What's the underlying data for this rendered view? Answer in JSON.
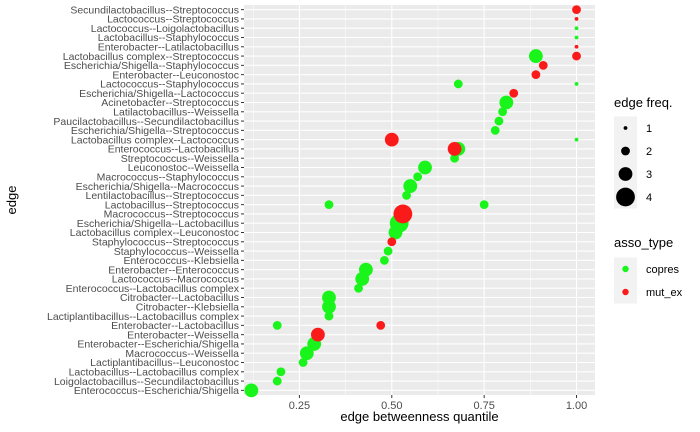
{
  "chart_data": {
    "type": "scatter",
    "title": "",
    "xlabel": "edge betweenness quantile",
    "ylabel": "edge",
    "xlim": [
      0.1,
      1.05
    ],
    "x_ticks": [
      0.25,
      0.5,
      0.75,
      1.0
    ],
    "x_tick_labels": [
      "0.25",
      "0.50",
      "0.75",
      "1.00"
    ],
    "grid": true,
    "legend_placement": "right",
    "colors": {
      "copres": "#19f51b",
      "mut_ex": "#fb1a1a",
      "panel": "#ebebeb",
      "grid": "#ffffff"
    },
    "categories": [
      "Secundilactobacillus--Streptococcus",
      "Lactococcus--Streptococcus",
      "Lactococcus--Loigolactobacillus",
      "Lactobacillus--Staphylococcus",
      "Enterobacter--Latilactobacillus",
      "Lactobacillus complex--Streptococcus",
      "Escherichia/Shigella--Staphylococcus",
      "Enterobacter--Leuconostoc",
      "Lactococcus--Staphylococcus",
      "Escherichia/Shigella--Lactococcus",
      "Acinetobacter--Streptococcus",
      "Latilactobacillus--Weissella",
      "Paucilactobacillus--Secundilactobacillus",
      "Escherichia/Shigella--Streptococcus",
      "Lactobacillus complex--Lactococcus",
      "Enterococcus--Lactobacillus",
      "Streptococcus--Weissella",
      "Leuconostoc--Weissella",
      "Macrococcus--Staphylococcus",
      "Escherichia/Shigella--Macrococcus",
      "Lentilactobacillus--Streptococcus",
      "Lactobacillus--Streptococcus",
      "Macrococcus--Streptococcus",
      "Escherichia/Shigella--Lactobacillus",
      "Lactobacillus complex--Leuconostoc",
      "Staphylococcus--Streptococcus",
      "Staphylococcus--Weissella",
      "Enterococcus--Klebsiella",
      "Enterobacter--Enterococcus",
      "Lactococcus--Macrococcus",
      "Enterococcus--Lactobacillus complex",
      "Citrobacter--Lactobacillus",
      "Citrobacter--Klebsiella",
      "Lactiplantibacillus--Lactobacillus complex",
      "Enterobacter--Lactobacillus",
      "Enterobacter--Weissella",
      "Enterobacter--Escherichia/Shigella",
      "Macrococcus--Weissella",
      "Lactiplantibacillus--Leuconostoc",
      "Lactobacillus--Lactobacillus complex",
      "Loigolactobacillus--Secundilactobacillus",
      "Enterococcus--Escherichia/Shigella"
    ],
    "series": [
      {
        "name": "copres",
        "color": "#19f51b",
        "points": [
          {
            "edge": "Lactococcus--Loigolactobacillus",
            "x": 1.0,
            "freq": 1
          },
          {
            "edge": "Lactobacillus--Staphylococcus",
            "x": 1.0,
            "freq": 1
          },
          {
            "edge": "Lactobacillus complex--Streptococcus",
            "x": 0.89,
            "freq": 3
          },
          {
            "edge": "Lactococcus--Staphylococcus",
            "x": 0.68,
            "freq": 2
          },
          {
            "edge": "Lactococcus--Staphylococcus",
            "x": 1.0,
            "freq": 1
          },
          {
            "edge": "Acinetobacter--Streptococcus",
            "x": 0.81,
            "freq": 3
          },
          {
            "edge": "Latilactobacillus--Weissella",
            "x": 0.8,
            "freq": 2
          },
          {
            "edge": "Paucilactobacillus--Secundilactobacillus",
            "x": 0.79,
            "freq": 2
          },
          {
            "edge": "Escherichia/Shigella--Streptococcus",
            "x": 0.78,
            "freq": 2
          },
          {
            "edge": "Lactobacillus complex--Lactococcus",
            "x": 1.0,
            "freq": 1
          },
          {
            "edge": "Enterococcus--Lactobacillus",
            "x": 0.68,
            "freq": 3
          },
          {
            "edge": "Streptococcus--Weissella",
            "x": 0.67,
            "freq": 2
          },
          {
            "edge": "Leuconostoc--Weissella",
            "x": 0.59,
            "freq": 3
          },
          {
            "edge": "Macrococcus--Staphylococcus",
            "x": 0.57,
            "freq": 2
          },
          {
            "edge": "Escherichia/Shigella--Macrococcus",
            "x": 0.55,
            "freq": 3
          },
          {
            "edge": "Lentilactobacillus--Streptococcus",
            "x": 0.54,
            "freq": 2
          },
          {
            "edge": "Lactobacillus--Streptococcus",
            "x": 0.33,
            "freq": 2
          },
          {
            "edge": "Lactobacillus--Streptococcus",
            "x": 0.75,
            "freq": 2
          },
          {
            "edge": "Escherichia/Shigella--Lactobacillus",
            "x": 0.52,
            "freq": 4
          },
          {
            "edge": "Lactobacillus complex--Leuconostoc",
            "x": 0.51,
            "freq": 3
          },
          {
            "edge": "Staphylococcus--Weissella",
            "x": 0.49,
            "freq": 2
          },
          {
            "edge": "Enterococcus--Klebsiella",
            "x": 0.48,
            "freq": 2
          },
          {
            "edge": "Enterobacter--Enterococcus",
            "x": 0.43,
            "freq": 3
          },
          {
            "edge": "Lactococcus--Macrococcus",
            "x": 0.42,
            "freq": 3
          },
          {
            "edge": "Enterococcus--Lactobacillus complex",
            "x": 0.41,
            "freq": 2
          },
          {
            "edge": "Citrobacter--Lactobacillus",
            "x": 0.33,
            "freq": 3
          },
          {
            "edge": "Citrobacter--Klebsiella",
            "x": 0.33,
            "freq": 3
          },
          {
            "edge": "Lactiplantibacillus--Lactobacillus complex",
            "x": 0.33,
            "freq": 2
          },
          {
            "edge": "Enterobacter--Lactobacillus",
            "x": 0.19,
            "freq": 2
          },
          {
            "edge": "Enterobacter--Escherichia/Shigella",
            "x": 0.29,
            "freq": 3
          },
          {
            "edge": "Macrococcus--Weissella",
            "x": 0.27,
            "freq": 3
          },
          {
            "edge": "Lactiplantibacillus--Leuconostoc",
            "x": 0.26,
            "freq": 2
          },
          {
            "edge": "Lactobacillus--Lactobacillus complex",
            "x": 0.2,
            "freq": 2
          },
          {
            "edge": "Loigolactobacillus--Secundilactobacillus",
            "x": 0.19,
            "freq": 2
          },
          {
            "edge": "Enterococcus--Escherichia/Shigella",
            "x": 0.12,
            "freq": 3
          }
        ]
      },
      {
        "name": "mut_ex",
        "color": "#fb1a1a",
        "points": [
          {
            "edge": "Secundilactobacillus--Streptococcus",
            "x": 1.0,
            "freq": 2
          },
          {
            "edge": "Lactococcus--Streptococcus",
            "x": 1.0,
            "freq": 1
          },
          {
            "edge": "Enterobacter--Latilactobacillus",
            "x": 1.0,
            "freq": 1
          },
          {
            "edge": "Lactobacillus complex--Streptococcus",
            "x": 1.0,
            "freq": 2
          },
          {
            "edge": "Escherichia/Shigella--Staphylococcus",
            "x": 0.91,
            "freq": 2
          },
          {
            "edge": "Enterobacter--Leuconostoc",
            "x": 0.89,
            "freq": 2
          },
          {
            "edge": "Escherichia/Shigella--Lactococcus",
            "x": 0.83,
            "freq": 2
          },
          {
            "edge": "Lactobacillus complex--Lactococcus",
            "x": 0.5,
            "freq": 3
          },
          {
            "edge": "Enterococcus--Lactobacillus",
            "x": 0.67,
            "freq": 3
          },
          {
            "edge": "Macrococcus--Streptococcus",
            "x": 0.53,
            "freq": 4
          },
          {
            "edge": "Staphylococcus--Streptococcus",
            "x": 0.5,
            "freq": 2
          },
          {
            "edge": "Enterobacter--Lactobacillus",
            "x": 0.47,
            "freq": 2
          },
          {
            "edge": "Enterobacter--Weissella",
            "x": 0.3,
            "freq": 3
          }
        ]
      }
    ],
    "legend": {
      "size_title": "edge freq.",
      "size_entries": [
        {
          "label": "1",
          "freq": 1
        },
        {
          "label": "2",
          "freq": 2
        },
        {
          "label": "3",
          "freq": 3
        },
        {
          "label": "4",
          "freq": 4
        }
      ],
      "color_title": "asso_type",
      "color_entries": [
        {
          "label": "copres",
          "color": "#19f51b"
        },
        {
          "label": "mut_ex",
          "color": "#fb1a1a"
        }
      ]
    }
  }
}
